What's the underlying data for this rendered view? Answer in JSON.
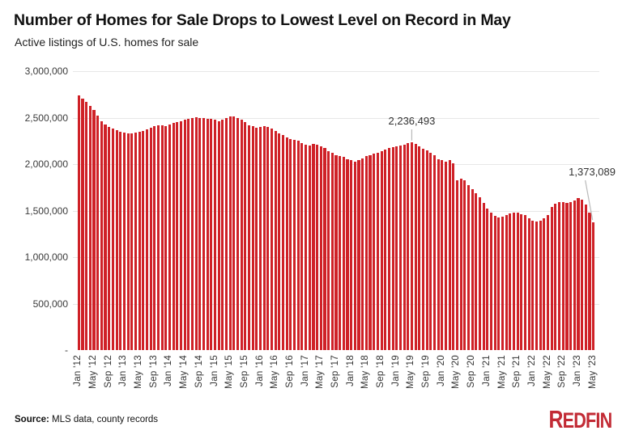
{
  "header": {
    "title": "Number of Homes for Sale Drops to Lowest Level on Record in May",
    "subtitle": "Active listings of U.S. homes for sale"
  },
  "chart_data": {
    "type": "bar",
    "title": "Number of Homes for Sale Drops to Lowest Level on Record in May",
    "subtitle": "Active listings of U.S. homes for sale",
    "frequency": "monthly",
    "x_start": "Jan '12",
    "x_end": "May '23",
    "ylim": [
      0,
      3000000
    ],
    "grid": "horizontal",
    "y_tick_labels": [
      "3,000,000",
      "2,500,000",
      "2,000,000",
      "1,500,000",
      "1,000,000",
      "500,000",
      "-"
    ],
    "x_tick_labels": [
      "Jan '12",
      "May '12",
      "Sep '12",
      "Jan '13",
      "May '13",
      "Sep '13",
      "Jan '14",
      "May '14",
      "Sep '14",
      "Jan '15",
      "May '15",
      "Sep '15",
      "Jan '16",
      "May '16",
      "Sep '16",
      "Jan '17",
      "May '17",
      "Sep '17",
      "Jan '18",
      "May '18",
      "Sep '18",
      "Jan '19",
      "May '19",
      "Sep '19",
      "Jan '20",
      "May '20",
      "Sep '20",
      "Jan '21",
      "May '21",
      "Sep '21",
      "Jan '22",
      "May '22",
      "Sep '22",
      "Jan '23",
      "May '23"
    ],
    "x_tick_every_n_bars": 4,
    "values": [
      2740000,
      2705000,
      2670000,
      2630000,
      2580000,
      2520000,
      2460000,
      2425000,
      2400000,
      2380000,
      2365000,
      2350000,
      2340000,
      2330000,
      2330000,
      2340000,
      2350000,
      2360000,
      2375000,
      2390000,
      2405000,
      2415000,
      2420000,
      2410000,
      2430000,
      2440000,
      2450000,
      2460000,
      2475000,
      2485000,
      2500000,
      2505000,
      2500000,
      2495000,
      2490000,
      2485000,
      2480000,
      2465000,
      2475000,
      2500000,
      2510000,
      2510000,
      2500000,
      2475000,
      2450000,
      2420000,
      2405000,
      2390000,
      2400000,
      2410000,
      2400000,
      2380000,
      2355000,
      2330000,
      2310000,
      2290000,
      2270000,
      2260000,
      2250000,
      2230000,
      2210000,
      2200000,
      2215000,
      2210000,
      2190000,
      2170000,
      2140000,
      2120000,
      2100000,
      2090000,
      2075000,
      2055000,
      2040000,
      2030000,
      2045000,
      2060000,
      2085000,
      2100000,
      2110000,
      2120000,
      2135000,
      2155000,
      2170000,
      2180000,
      2190000,
      2200000,
      2210000,
      2225000,
      2236493,
      2220000,
      2190000,
      2165000,
      2145000,
      2125000,
      2100000,
      2055000,
      2040000,
      2030000,
      2045000,
      2010000,
      1825000,
      1845000,
      1825000,
      1775000,
      1730000,
      1685000,
      1640000,
      1580000,
      1520000,
      1480000,
      1440000,
      1425000,
      1435000,
      1455000,
      1470000,
      1480000,
      1480000,
      1465000,
      1450000,
      1420000,
      1395000,
      1385000,
      1395000,
      1420000,
      1450000,
      1535000,
      1575000,
      1590000,
      1595000,
      1580000,
      1590000,
      1610000,
      1635000,
      1615000,
      1565000,
      1480000,
      1373089
    ],
    "annotations": [
      {
        "label": "2,236,493",
        "bar_index": 88,
        "value": 2236493
      },
      {
        "label": "1,373,089",
        "bar_index": 136,
        "value": 1373089
      }
    ],
    "bar_color": "#cf2127"
  },
  "footer": {
    "source_label": "Source:",
    "source_text": " MLS data, county records",
    "logo_text": "REDFIN"
  },
  "colors": {
    "bar": "#cf2127",
    "logo": "#c22b35",
    "grid": "#e7e7e7",
    "leader_line": "#b9b9b9"
  }
}
